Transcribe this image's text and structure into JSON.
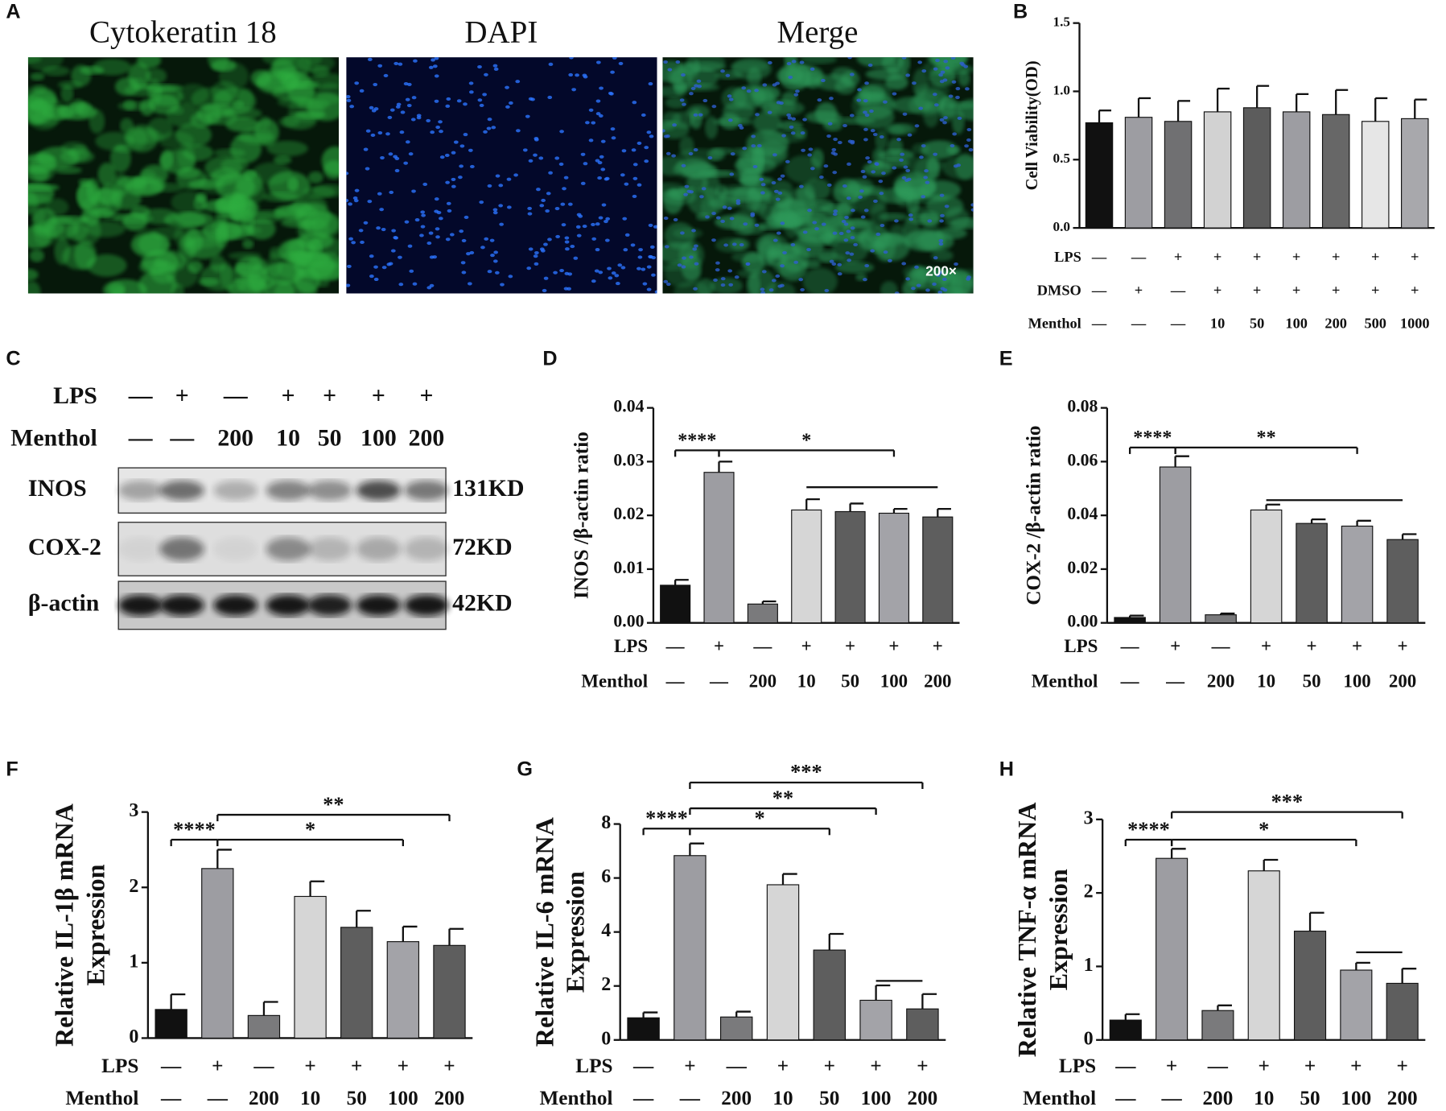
{
  "panel_a": {
    "label": "A",
    "images": [
      {
        "title": "Cytokeratin 18"
      },
      {
        "title": "DAPI"
      },
      {
        "title": "Merge"
      }
    ],
    "magnification": "200×"
  },
  "panel_c": {
    "label": "C",
    "rows": [
      {
        "name": "LPS",
        "labels": [
          "—",
          "+",
          "—",
          "+",
          "+",
          "+",
          "+"
        ]
      },
      {
        "name": "Menthol",
        "labels": [
          "—",
          "—",
          "200",
          "10",
          "50",
          "100",
          "200"
        ]
      }
    ],
    "bands": [
      {
        "name": "INOS",
        "size": "131KD"
      },
      {
        "name": "COX-2",
        "size": "72KD"
      },
      {
        "name": "β-actin",
        "size": "42KD"
      }
    ]
  },
  "chart_data": [
    {
      "panel_label": "B",
      "type": "bar",
      "ylabel": [
        "Cell Viability(OD)"
      ],
      "values": [
        0.77,
        0.81,
        0.78,
        0.85,
        0.88,
        0.85,
        0.83,
        0.78,
        0.8
      ],
      "errors": [
        0.09,
        0.14,
        0.15,
        0.17,
        0.16,
        0.13,
        0.18,
        0.17,
        0.14
      ],
      "colors": [
        "#111111",
        "#9d9da2",
        "#707072",
        "#d2d2d2",
        "#5c5c5c",
        "#9d9da2",
        "#676767",
        "#e6e6e6",
        "#a8a8ac"
      ],
      "ylim": [
        0,
        1.5
      ],
      "yticks": [
        {
          "value": 0,
          "label": "0.0"
        },
        0.5,
        {
          "value": 1,
          "label": "1.0"
        },
        1.5
      ],
      "rows": [
        {
          "name": "LPS",
          "labels": [
            "—",
            "—",
            "+",
            "+",
            "+",
            "+",
            "+",
            "+",
            "+"
          ]
        },
        {
          "name": "DMSO",
          "labels": [
            "—",
            "+",
            "—",
            "+",
            "+",
            "+",
            "+",
            "+",
            "+"
          ]
        },
        {
          "name": "Menthol",
          "labels": [
            "—",
            "—",
            "—",
            "10",
            "50",
            "100",
            "200",
            "500",
            "1000"
          ]
        }
      ]
    },
    {
      "panel_label": "D",
      "type": "bar",
      "ylabel": [
        "INOS /β-actin  ratio"
      ],
      "values": [
        0.007,
        0.028,
        0.0035,
        0.021,
        0.0207,
        0.0204,
        0.0197
      ],
      "errors": [
        0.001,
        0.002,
        0.0005,
        0.002,
        0.0015,
        0.0008,
        0.0015
      ],
      "colors": [
        "#111111",
        "#9d9da2",
        "#7a7a7c",
        "#d6d6d6",
        "#5e5e5e",
        "#a3a3a8",
        "#5e5e5e"
      ],
      "ylim": [
        0,
        0.04
      ],
      "yticks": [
        {
          "value": 0,
          "label": "0.00"
        },
        0.01,
        0.02,
        0.03,
        0.04
      ],
      "rows": [
        {
          "name": "LPS",
          "labels": [
            "—",
            "+",
            "—",
            "+",
            "+",
            "+",
            "+"
          ]
        },
        {
          "name": "Menthol",
          "labels": [
            "—",
            "—",
            "200",
            "10",
            "50",
            "100",
            "200"
          ]
        }
      ],
      "annotations": [
        "****",
        "*"
      ]
    },
    {
      "panel_label": "E",
      "type": "bar",
      "ylabel": [
        "COX-2 /β-actin ratio"
      ],
      "values": [
        0.002,
        0.058,
        0.003,
        0.042,
        0.037,
        0.036,
        0.031
      ],
      "errors": [
        0.0007,
        0.004,
        0.0005,
        0.002,
        0.0015,
        0.002,
        0.002
      ],
      "colors": [
        "#111111",
        "#9d9da2",
        "#7a7a7c",
        "#d6d6d6",
        "#5e5e5e",
        "#a3a3a8",
        "#5e5e5e"
      ],
      "ylim": [
        0,
        0.08
      ],
      "yticks": [
        {
          "value": 0,
          "label": "0.00"
        },
        0.02,
        0.04,
        0.06,
        0.08
      ],
      "rows": [
        {
          "name": "LPS",
          "labels": [
            "—",
            "+",
            "—",
            "+",
            "+",
            "+",
            "+"
          ]
        },
        {
          "name": "Menthol",
          "labels": [
            "—",
            "—",
            "200",
            "10",
            "50",
            "100",
            "200"
          ]
        }
      ],
      "annotations": [
        "****",
        "**"
      ]
    },
    {
      "panel_label": "F",
      "type": "bar",
      "ylabel": [
        "Relative  IL-1β mRNA",
        "Expression"
      ],
      "values": [
        0.38,
        2.25,
        0.3,
        1.88,
        1.47,
        1.28,
        1.23
      ],
      "errors": [
        0.2,
        0.25,
        0.18,
        0.2,
        0.22,
        0.2,
        0.22
      ],
      "colors": [
        "#111111",
        "#9d9da2",
        "#7a7a7c",
        "#d6d6d6",
        "#5e5e5e",
        "#a3a3a8",
        "#5e5e5e"
      ],
      "ylim": [
        0,
        3
      ],
      "yticks": [
        0,
        1,
        2,
        3
      ],
      "rows": [
        {
          "name": "LPS",
          "labels": [
            "—",
            "+",
            "—",
            "+",
            "+",
            "+",
            "+"
          ]
        },
        {
          "name": "Menthol",
          "labels": [
            "—",
            "—",
            "200",
            "10",
            "50",
            "100",
            "200"
          ]
        }
      ],
      "annotations": [
        "****",
        "*",
        "**"
      ]
    },
    {
      "panel_label": "G",
      "type": "bar",
      "ylabel": [
        "Relative  IL-6 mRNA",
        "Expression"
      ],
      "values": [
        0.82,
        6.83,
        0.85,
        5.75,
        3.33,
        1.47,
        1.15
      ],
      "errors": [
        0.2,
        0.45,
        0.2,
        0.4,
        0.6,
        0.55,
        0.55
      ],
      "colors": [
        "#111111",
        "#9d9da2",
        "#7a7a7c",
        "#d6d6d6",
        "#5e5e5e",
        "#a3a3a8",
        "#5e5e5e"
      ],
      "ylim": [
        0,
        8
      ],
      "yticks": [
        0,
        2,
        4,
        6,
        8
      ],
      "rows": [
        {
          "name": "LPS",
          "labels": [
            "—",
            "+",
            "—",
            "+",
            "+",
            "+",
            "+"
          ]
        },
        {
          "name": "Menthol",
          "labels": [
            "—",
            "—",
            "200",
            "10",
            "50",
            "100",
            "200"
          ]
        }
      ],
      "annotations": [
        "****",
        "*",
        "**",
        "***"
      ]
    },
    {
      "panel_label": "H",
      "type": "bar",
      "ylabel": [
        "Relative  TNF-α mRNA",
        "Expression"
      ],
      "values": [
        0.27,
        2.47,
        0.4,
        2.3,
        1.48,
        0.95,
        0.77
      ],
      "errors": [
        0.08,
        0.13,
        0.07,
        0.15,
        0.25,
        0.1,
        0.2
      ],
      "colors": [
        "#111111",
        "#9d9da2",
        "#7a7a7c",
        "#d6d6d6",
        "#5e5e5e",
        "#a3a3a8",
        "#5e5e5e"
      ],
      "ylim": [
        0,
        3
      ],
      "yticks": [
        0,
        1,
        2,
        3
      ],
      "rows": [
        {
          "name": "LPS",
          "labels": [
            "—",
            "+",
            "—",
            "+",
            "+",
            "+",
            "+"
          ]
        },
        {
          "name": "Menthol",
          "labels": [
            "—",
            "—",
            "200",
            "10",
            "50",
            "100",
            "200"
          ]
        }
      ],
      "annotations": [
        "****",
        "*",
        "***"
      ]
    }
  ]
}
